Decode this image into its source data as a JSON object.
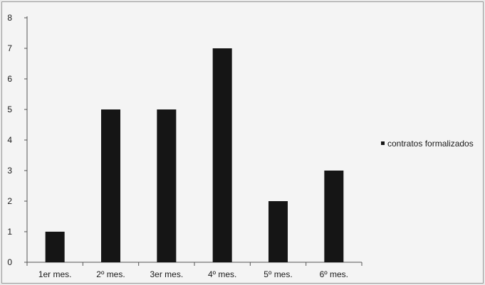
{
  "chart_data": {
    "type": "bar",
    "categories": [
      "1er mes.",
      "2º mes.",
      "3er mes.",
      "4º mes.",
      "5º mes.",
      "6º mes."
    ],
    "series": [
      {
        "name": "contratos formalizados",
        "values": [
          1,
          5,
          5,
          7,
          2,
          3
        ],
        "color": "#151515"
      }
    ],
    "ylim": [
      0,
      8
    ],
    "yticks": [
      0,
      1,
      2,
      3,
      4,
      5,
      6,
      7,
      8
    ],
    "grid": false,
    "legend_position": "right"
  }
}
